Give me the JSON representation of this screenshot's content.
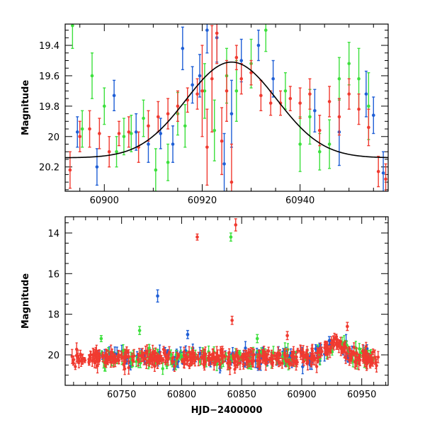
{
  "chart_data": [
    {
      "type": "scatter",
      "panel": "top",
      "ylabel": "Magnitude",
      "xlabel": "",
      "xlim": [
        60892,
        60958
      ],
      "ylim": [
        20.36,
        19.26
      ],
      "y_inverted": true,
      "xticks": [
        60900,
        60920,
        60940
      ],
      "yticks": [
        19.4,
        19.6,
        19.8,
        20,
        20.2
      ],
      "ytick_labels": [
        "19.4",
        "19.6",
        "19.8",
        "20",
        "20.2"
      ],
      "model": {
        "type": "gaussian",
        "baseline": 20.14,
        "peak_mag": 19.51,
        "t0": 60926,
        "sigma": 9.3,
        "color": "#000000"
      },
      "series": [
        {
          "name": "blue",
          "color": "#1f5fd6",
          "x": [
            60894.5,
            60898.5,
            60902,
            60906.5,
            60909,
            60911.5,
            60914,
            60916,
            60918,
            60919.5,
            60921,
            60923,
            60924.5,
            60926,
            60928,
            60931.5,
            60934.5,
            60943,
            60948,
            60953.5,
            60955,
            60957
          ],
          "y": [
            19.97,
            20.2,
            19.73,
            19.97,
            20.05,
            19.98,
            20.05,
            19.42,
            19.66,
            19.6,
            19.3,
            19.35,
            20.18,
            19.85,
            19.5,
            19.4,
            19.62,
            19.83,
            19.97,
            19.72,
            19.86,
            20.24
          ],
          "err": [
            0.1,
            0.12,
            0.1,
            0.12,
            0.12,
            0.1,
            0.12,
            0.14,
            0.12,
            0.14,
            0.15,
            0.16,
            0.2,
            0.22,
            0.14,
            0.1,
            0.12,
            0.14,
            0.22,
            0.15,
            0.12,
            0.14
          ]
        },
        {
          "name": "green",
          "color": "#3de03d",
          "x": [
            60893.5,
            60895.5,
            60897.5,
            60900,
            60902.5,
            60904,
            60905.5,
            60908,
            60910.5,
            60913,
            60915,
            60916.5,
            60920.5,
            60922.5,
            60925,
            60927,
            60930,
            60933,
            60937,
            60940,
            60942,
            60944,
            60946,
            60948,
            60950,
            60952,
            60954
          ],
          "y": [
            19.27,
            19.95,
            19.6,
            19.8,
            20.1,
            20.0,
            19.98,
            19.88,
            20.22,
            20.17,
            19.85,
            19.93,
            19.7,
            19.96,
            19.6,
            19.7,
            19.52,
            19.3,
            19.7,
            20.05,
            19.87,
            20.1,
            20.05,
            19.62,
            19.52,
            19.62,
            19.8
          ],
          "err": [
            0.15,
            0.12,
            0.15,
            0.12,
            0.1,
            0.12,
            0.12,
            0.12,
            0.14,
            0.12,
            0.14,
            0.14,
            0.18,
            0.2,
            0.18,
            0.2,
            0.16,
            0.14,
            0.12,
            0.18,
            0.18,
            0.12,
            0.16,
            0.14,
            0.14,
            0.2,
            0.22
          ]
        },
        {
          "name": "red",
          "color": "#f03a30",
          "x": [
            60893,
            60895,
            60897,
            60899,
            60901,
            60903,
            60905,
            60907,
            60909,
            60911,
            60913,
            60915,
            60917,
            60919,
            60920,
            60921,
            60922,
            60923,
            60924,
            60925,
            60926,
            60927,
            60928,
            60930,
            60932,
            60934,
            60936,
            60938,
            60940,
            60942,
            60944,
            60946,
            60948,
            60950,
            60952,
            60954,
            60956,
            60957.5
          ],
          "y": [
            20.22,
            20.0,
            19.95,
            19.98,
            20.1,
            19.98,
            19.97,
            20.07,
            19.93,
            19.87,
            19.85,
            19.8,
            19.76,
            19.72,
            19.7,
            20.07,
            19.62,
            19.32,
            20.03,
            19.7,
            20.3,
            19.48,
            19.62,
            19.58,
            19.73,
            19.78,
            19.78,
            19.75,
            19.78,
            19.72,
            19.96,
            19.77,
            19.87,
            19.72,
            19.82,
            19.94,
            20.23,
            20.28
          ],
          "err": [
            0.12,
            0.1,
            0.12,
            0.1,
            0.1,
            0.08,
            0.1,
            0.1,
            0.1,
            0.1,
            0.1,
            0.1,
            0.08,
            0.1,
            0.3,
            0.25,
            0.35,
            0.2,
            0.22,
            0.2,
            0.25,
            0.08,
            0.1,
            0.08,
            0.1,
            0.08,
            0.08,
            0.08,
            0.1,
            0.1,
            0.1,
            0.1,
            0.12,
            0.1,
            0.1,
            0.12,
            0.1,
            0.1
          ]
        }
      ]
    },
    {
      "type": "scatter",
      "panel": "bottom",
      "ylabel": "Magnitude",
      "xlabel": "HJD−2400000",
      "xlim": [
        60703,
        60972
      ],
      "ylim": [
        21.5,
        13.2
      ],
      "y_inverted": true,
      "xticks": [
        60750,
        60800,
        60850,
        60900,
        60950
      ],
      "yticks": [
        14,
        16,
        18,
        20
      ],
      "ytick_labels": [
        "14",
        "16",
        "18",
        "20"
      ],
      "outliers": [
        {
          "series": "red",
          "x": 60813,
          "y": 14.2,
          "err": 0.15
        },
        {
          "series": "red",
          "x": 60845,
          "y": 13.6,
          "err": 0.3
        },
        {
          "series": "green",
          "x": 60841,
          "y": 14.2,
          "err": 0.2
        },
        {
          "series": "red",
          "x": 60842,
          "y": 18.3,
          "err": 0.2
        },
        {
          "series": "red",
          "x": 60938,
          "y": 18.6,
          "err": 0.2
        },
        {
          "series": "blue",
          "x": 60780,
          "y": 17.1,
          "err": 0.3
        },
        {
          "series": "green",
          "x": 60765,
          "y": 18.8,
          "err": 0.2
        },
        {
          "series": "green",
          "x": 60733,
          "y": 19.2,
          "err": 0.15
        },
        {
          "series": "blue",
          "x": 60805,
          "y": 19.0,
          "err": 0.2
        },
        {
          "series": "red",
          "x": 60888,
          "y": 19.05,
          "err": 0.2
        },
        {
          "series": "green",
          "x": 60863,
          "y": 19.2,
          "err": 0.2
        },
        {
          "series": "blue",
          "x": 60923,
          "y": 19.3,
          "err": 0.2
        }
      ],
      "baseline_mag": 20.15,
      "baseline_scatter": 0.2,
      "bump": {
        "t0": 60928,
        "depth": 0.7,
        "sigma": 8
      },
      "series": [
        {
          "name": "blue",
          "color": "#1f5fd6",
          "x_range": [
            60730,
            60960
          ],
          "n": 140
        },
        {
          "name": "green",
          "color": "#3de03d",
          "x_range": [
            60733,
            60962
          ],
          "n": 150
        },
        {
          "name": "red",
          "color": "#f03a30",
          "x_range": [
            60708,
            60965
          ],
          "n": 420
        }
      ]
    }
  ]
}
